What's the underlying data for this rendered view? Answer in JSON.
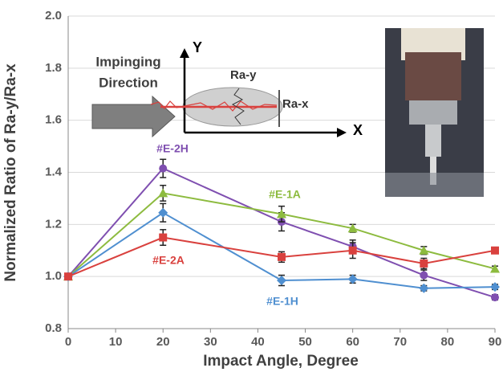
{
  "chart_data": {
    "type": "line",
    "x_label": "Impact Angle, Degree",
    "y_label": "Normalized Ratio of Ra-y/Ra-x",
    "x": [
      0,
      20,
      45,
      60,
      75,
      90
    ],
    "series": [
      {
        "name": "#E-2H",
        "color": "#7f4fb0",
        "marker": "circle",
        "values": [
          1.0,
          1.415,
          1.21,
          1.115,
          1.005,
          0.92
        ],
        "errors": [
          0.01,
          0.035,
          0.035,
          0.025,
          0.02,
          0.01
        ]
      },
      {
        "name": "#E-1A",
        "color": "#8dbb3f",
        "marker": "triangle",
        "values": [
          1.0,
          1.32,
          1.24,
          1.185,
          1.1,
          1.03
        ],
        "errors": [
          0.01,
          0.03,
          0.03,
          0.015,
          0.015,
          0.01
        ]
      },
      {
        "name": "#E-1H",
        "color": "#4f8fd0",
        "marker": "diamond",
        "values": [
          1.0,
          1.245,
          0.985,
          0.99,
          0.955,
          0.96
        ],
        "errors": [
          0.01,
          0.035,
          0.02,
          0.015,
          0.01,
          0.01
        ]
      },
      {
        "name": "#E-2A",
        "color": "#d9413e",
        "marker": "square",
        "values": [
          1.0,
          1.15,
          1.075,
          1.1,
          1.05,
          1.1
        ],
        "errors": [
          0.01,
          0.03,
          0.02,
          0.03,
          0.02,
          0.01
        ]
      }
    ],
    "xlim": [
      0,
      90
    ],
    "xticks": [
      0,
      10,
      20,
      30,
      40,
      50,
      60,
      70,
      80,
      90
    ],
    "ylim": [
      0.8,
      2.0
    ],
    "yticks": [
      {
        "value": 0.8,
        "label": "0.8"
      },
      {
        "value": 1.0,
        "label": "1.0"
      },
      {
        "value": 1.2,
        "label": "1.2"
      },
      {
        "value": 1.4,
        "label": "1.4"
      },
      {
        "value": 1.6,
        "label": "1.6"
      },
      {
        "value": 1.8,
        "label": "1.8"
      },
      {
        "value": 2.0,
        "label": "2.0"
      }
    ],
    "grid": true,
    "inset": {
      "direction_line1": "Impinging",
      "direction_line2": "Direction",
      "y_axis": "Y",
      "x_axis": "X",
      "ra_y": "Ra-y",
      "ra_x": "Ra-x"
    }
  }
}
